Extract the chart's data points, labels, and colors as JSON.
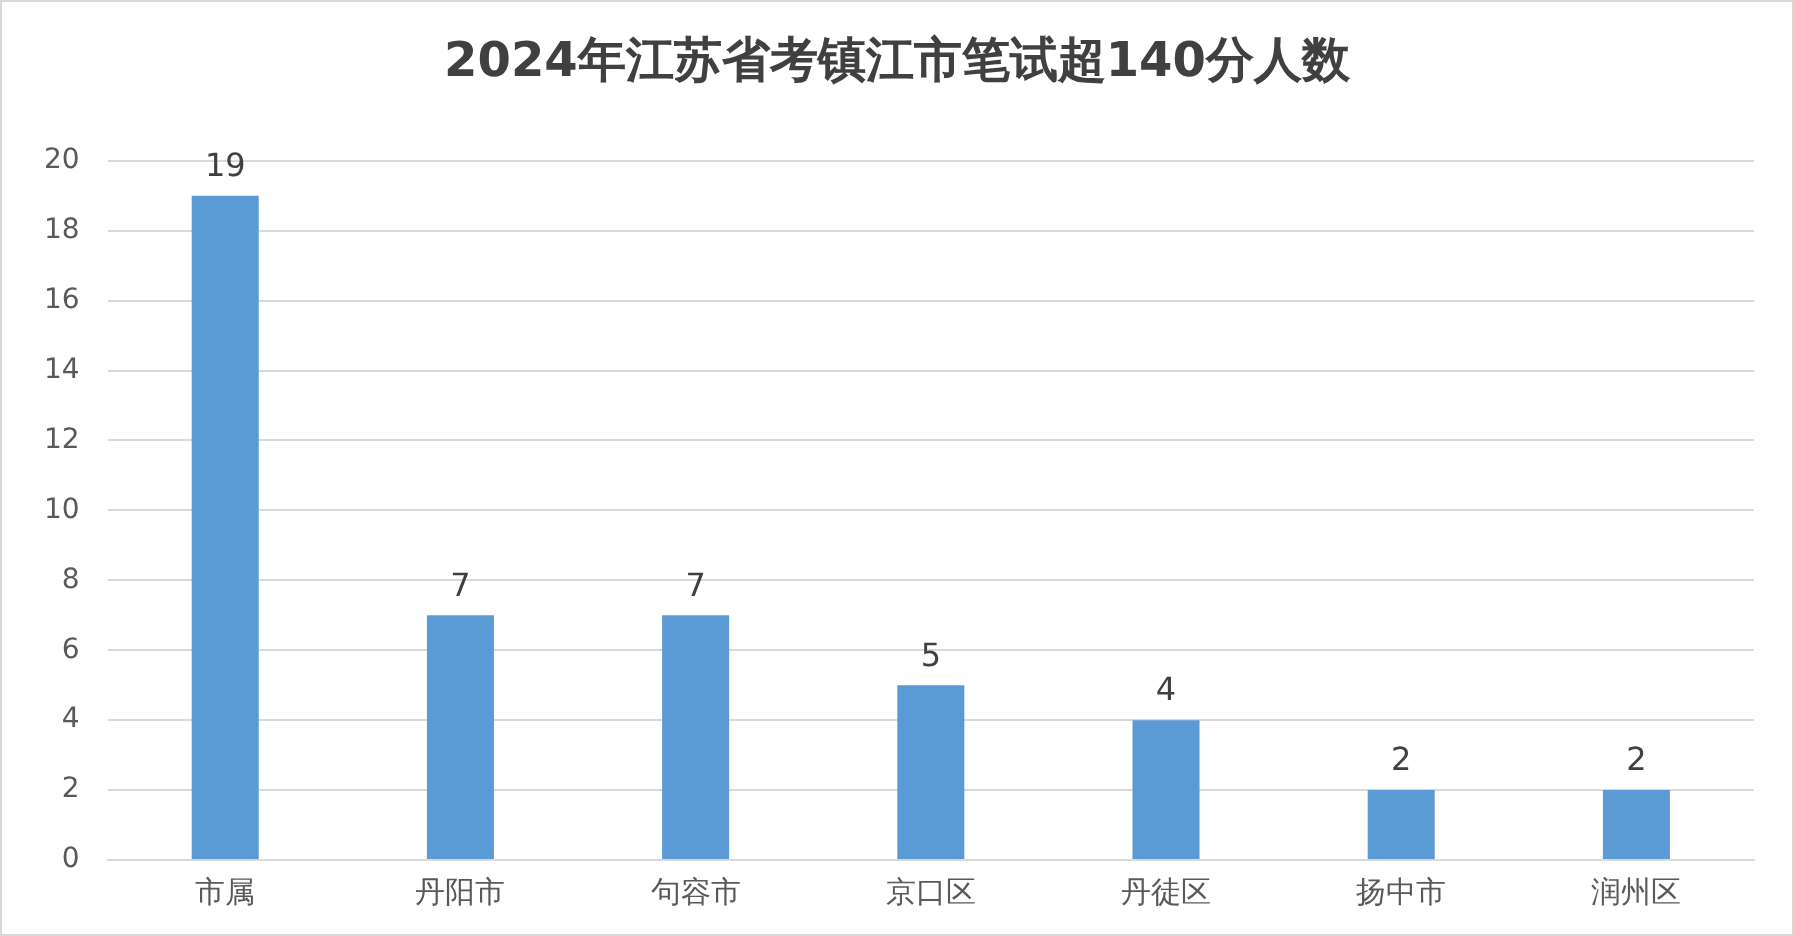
{
  "chart_data": {
    "type": "bar",
    "title": "2024年江苏省考镇江市笔试超140分人数",
    "categories": [
      "市属",
      "丹阳市",
      "句容市",
      "京口区",
      "丹徒区",
      "扬中市",
      "润州区"
    ],
    "values": [
      19,
      7,
      7,
      5,
      4,
      2,
      2
    ],
    "color": "#5b9bd5",
    "ylim": [
      0,
      20
    ],
    "yticks": [
      0,
      2,
      4,
      6,
      8,
      10,
      12,
      14,
      16,
      18,
      20
    ],
    "grid": "y",
    "data_labels": true
  }
}
